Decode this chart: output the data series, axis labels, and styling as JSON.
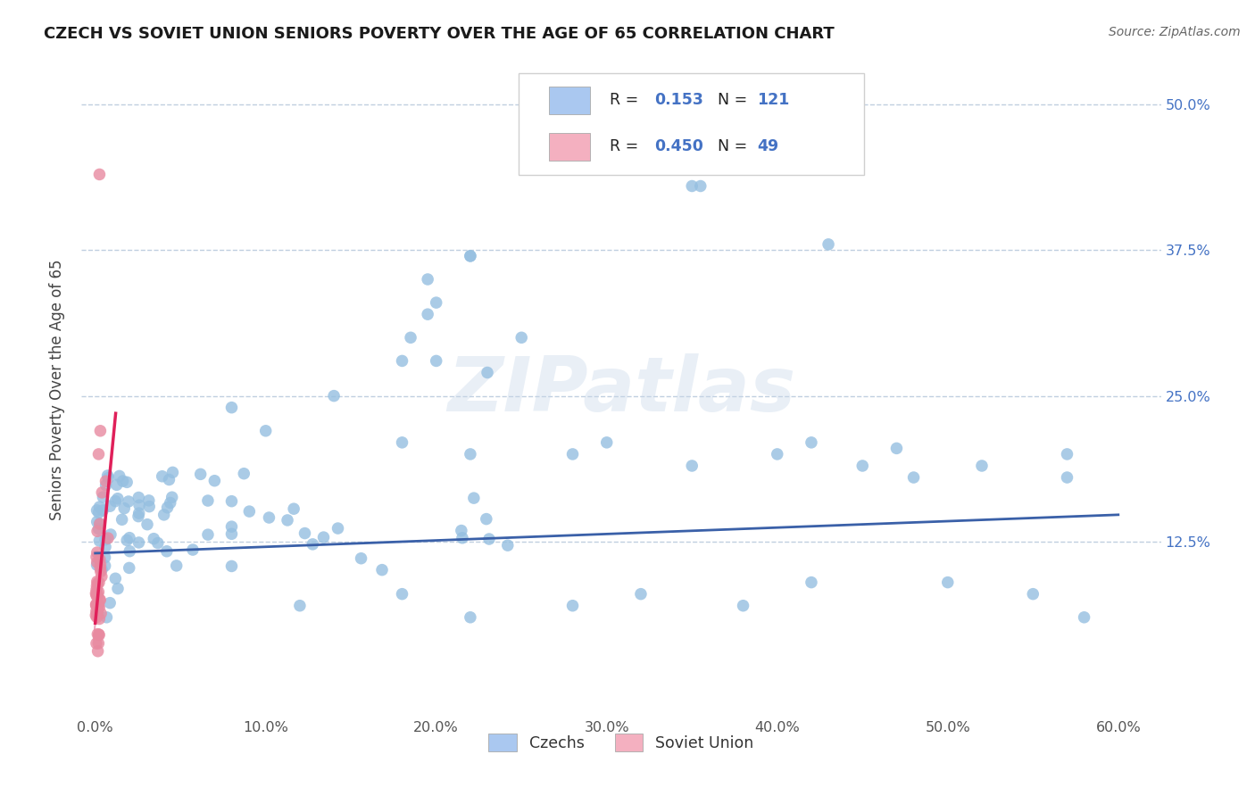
{
  "title": "CZECH VS SOVIET UNION SENIORS POVERTY OVER THE AGE OF 65 CORRELATION CHART",
  "source": "Source: ZipAtlas.com",
  "ylabel_label": "Seniors Poverty Over the Age of 65",
  "watermark": "ZIPatlas",
  "czech_R": 0.153,
  "czech_N": 121,
  "soviet_R": 0.45,
  "soviet_N": 49,
  "czech_dot_color": "#95bfe0",
  "soviet_dot_color": "#e88aa0",
  "czech_line_color": "#3a60a8",
  "soviet_line_color": "#e0205a",
  "soviet_line_dash_color": "#e890b0",
  "czech_legend_patch": "#aac8f0",
  "soviet_legend_patch": "#f4b0c0",
  "background_color": "#ffffff",
  "grid_dash_color": "#c0cfe0",
  "right_tick_color": "#4472c4",
  "legend_text_color": "#4472c4",
  "xmin": 0.0,
  "xmax": 0.6,
  "ymin": 0.0,
  "ymax": 0.5,
  "xticks": [
    0.0,
    0.1,
    0.2,
    0.3,
    0.4,
    0.5,
    0.6
  ],
  "xticklabels": [
    "0.0%",
    "10.0%",
    "20.0%",
    "30.0%",
    "40.0%",
    "50.0%",
    "60.0%"
  ],
  "yticks_right": [
    0.125,
    0.25,
    0.375,
    0.5
  ],
  "ytick_right_labels": [
    "12.5%",
    "25.0%",
    "37.5%",
    "50.0%"
  ],
  "hlines": [
    0.125,
    0.25,
    0.375,
    0.5
  ]
}
